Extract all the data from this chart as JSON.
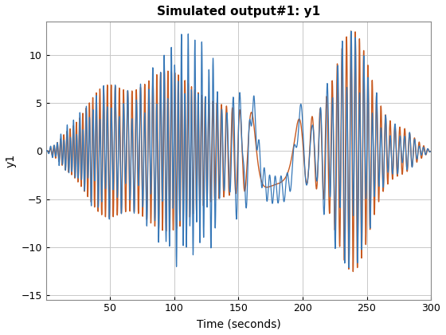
{
  "title": "Simulated output#1: y1",
  "xlabel": "Time (seconds)",
  "ylabel": "y1",
  "xlim": [
    0,
    300
  ],
  "ylim": [
    -15.5,
    13.5
  ],
  "xticks": [
    50,
    100,
    150,
    200,
    250,
    300
  ],
  "yticks": [
    -15,
    -10,
    -5,
    0,
    5,
    10
  ],
  "color_y1": "#3778B8",
  "color_nominal": "#C85A20",
  "bg_color": "#FFFFFF",
  "grid_color": "#C8C8C8",
  "linewidth_y1": 0.9,
  "linewidth_nominal": 1.0,
  "title_fontsize": 11,
  "label_fontsize": 10,
  "tick_fontsize": 9
}
